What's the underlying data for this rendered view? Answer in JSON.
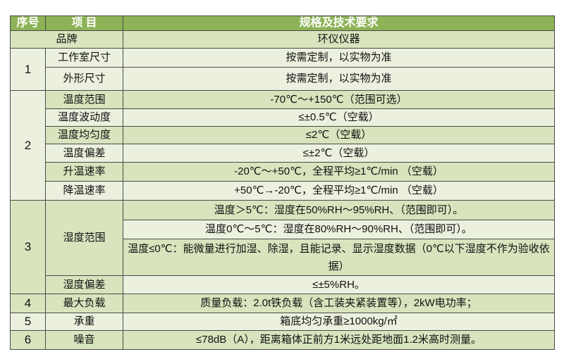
{
  "header": {
    "no": "序号",
    "item": "项 目",
    "spec": "规格及技术要求"
  },
  "brand": {
    "item": "品牌",
    "spec": "环仪仪器"
  },
  "groups": [
    {
      "no": "1",
      "rows": [
        {
          "item": "工作室尺寸",
          "spec": "按需定制，以实物为准"
        },
        {
          "item": "外形尺寸",
          "spec": "按需定制，以实物为准"
        }
      ]
    },
    {
      "no": "2",
      "rows": [
        {
          "item": "温度范围",
          "spec": "-70℃～+150℃（范围可选）"
        },
        {
          "item": "温度波动度",
          "spec": "≤±0.5℃（空载）"
        },
        {
          "item": "温度均匀度",
          "spec": "≤2℃（空载）"
        },
        {
          "item": "温度偏差",
          "spec": "≤±2℃（空载）"
        },
        {
          "item": "升温速率",
          "spec": "-20℃～+50℃，全程平均≥1℃/min （空载）"
        },
        {
          "item": "降温速率",
          "spec": "+50℃→-20℃，全程平均≥1℃/min （空载）"
        }
      ]
    },
    {
      "no": "3",
      "item_a": "湿度范围",
      "specs_a": [
        "温度＞5℃：湿度在50%RH～95%RH、（范围即可）。",
        "温度0℃～5℃：湿度在80%RH～90%RH、（范围即可）。",
        "温度≤0℃：能微量进行加湿、除湿，且能记录、显示湿度数据（0℃以下湿度不作为验收依据）"
      ],
      "item_b": "湿度偏差",
      "spec_b": "≤±5%RH。"
    },
    {
      "no": "4",
      "item": "最大负载",
      "spec": "质量负载：2.0t铁负载（含工装夹紧装置等），2kW电功率；"
    },
    {
      "no": "5",
      "item": "承重",
      "spec": "箱底均匀承重≥1000kg/㎡"
    },
    {
      "no": "6",
      "item": "噪音",
      "spec": "≤78dB（A），距离箱体正前方1米远处距地面1.2米高时测量。"
    }
  ],
  "colors": {
    "header": "#8db356",
    "row_dark": "#d7e4bd",
    "row_light": "#ebf1de"
  }
}
